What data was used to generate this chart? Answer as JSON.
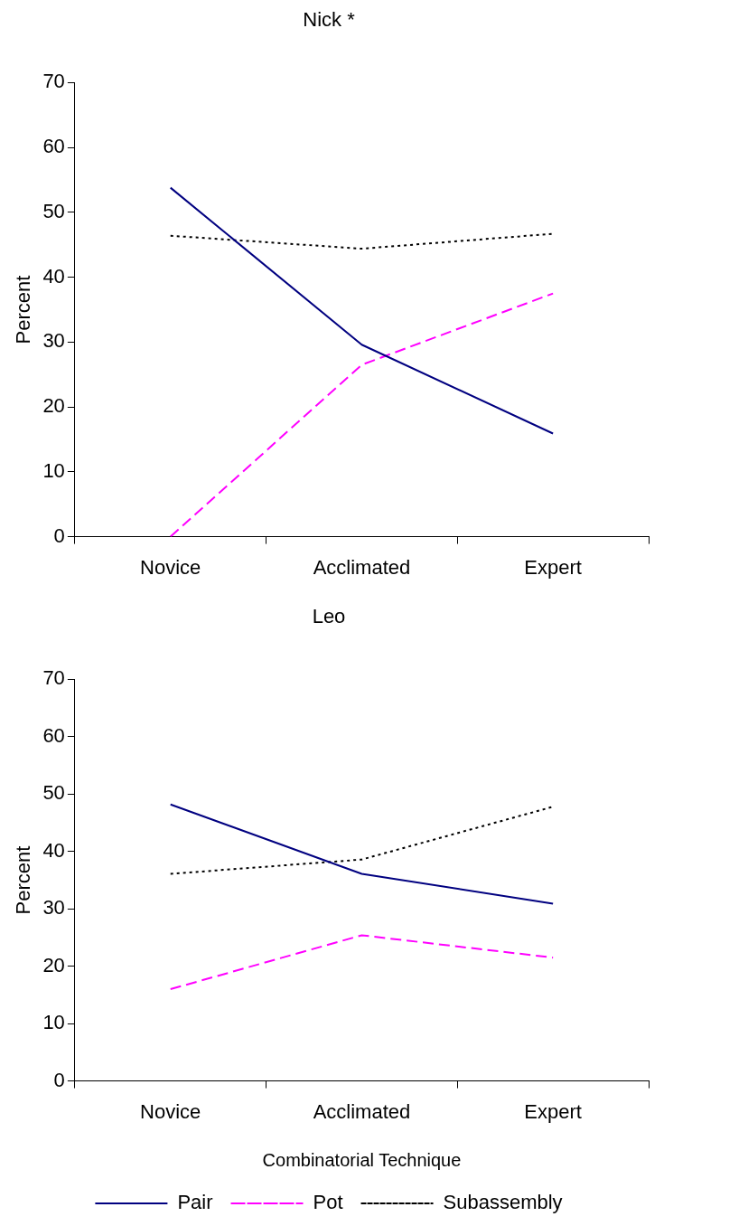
{
  "chart_data": [
    {
      "type": "line",
      "title": "Nick *",
      "ylabel": "Percent",
      "categories": [
        "Novice",
        "Acclimated",
        "Expert"
      ],
      "ylim": [
        0,
        70
      ],
      "yticks": [
        0,
        10,
        20,
        30,
        40,
        50,
        60,
        70
      ],
      "grid": false,
      "legend": false,
      "marker": "none",
      "series": [
        {
          "color": "#000080",
          "line_style": "solid",
          "values": [
            53.8,
            29.6,
            15.9
          ]
        },
        {
          "color": "#ff00ff",
          "line_style": "dashed",
          "values": [
            0,
            26.5,
            37.5
          ]
        },
        {
          "color": "#000000",
          "line_style": "dotted",
          "values": [
            46.4,
            44.4,
            46.7
          ]
        }
      ]
    },
    {
      "type": "line",
      "title": "Leo",
      "xlabel": "Combinatorial Technique",
      "ylabel": "Percent",
      "categories": [
        "Novice",
        "Acclimated",
        "Expert"
      ],
      "ylim": [
        0,
        70
      ],
      "yticks": [
        0,
        10,
        20,
        30,
        40,
        50,
        60,
        70
      ],
      "grid": false,
      "legend": "bottom",
      "marker": "none",
      "series": [
        {
          "name": "Pair",
          "color": "#000080",
          "line_style": "solid",
          "values": [
            48.2,
            36.1,
            30.9
          ]
        },
        {
          "name": "Pot",
          "color": "#ff00ff",
          "line_style": "dashed",
          "values": [
            16,
            25.4,
            21.5
          ]
        },
        {
          "name": "Subassembly",
          "color": "#000000",
          "line_style": "dotted",
          "values": [
            36.1,
            38.6,
            47.8
          ]
        }
      ]
    }
  ]
}
